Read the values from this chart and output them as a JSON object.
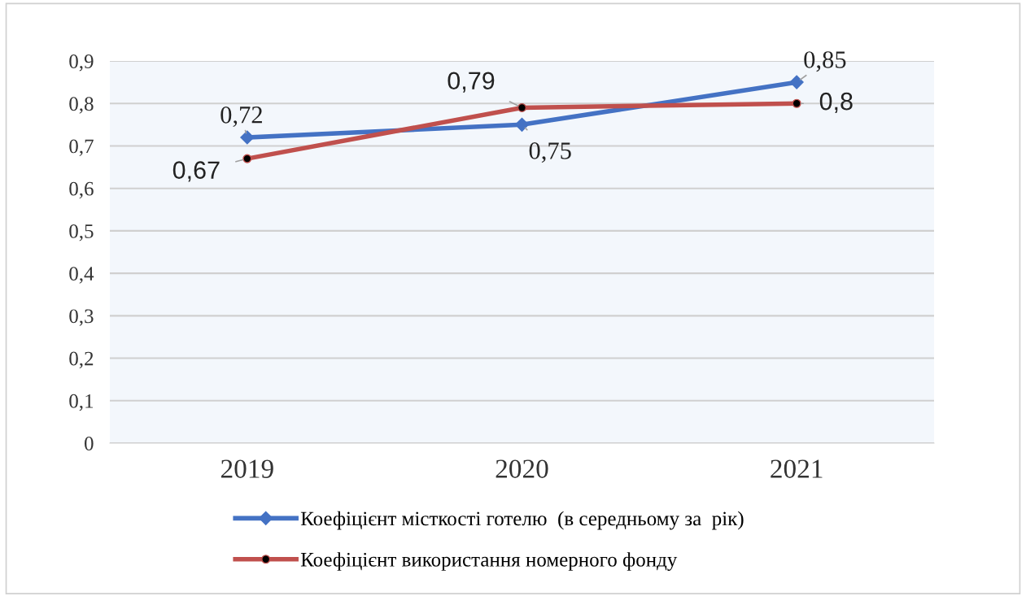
{
  "chart_data": {
    "type": "line",
    "categories": [
      "2019",
      "2020",
      "2021"
    ],
    "series": [
      {
        "name": "Коефіцієнт місткості готелю  (в середньому за  рік)",
        "color": "#4472c4",
        "marker": "diamond",
        "values": [
          0.72,
          0.75,
          0.85
        ],
        "value_labels": [
          "0,72",
          "0,75",
          "0,85"
        ]
      },
      {
        "name": "Коефіцієнт використання номерного фонду",
        "color": "#c0504d",
        "marker": "circle",
        "values": [
          0.67,
          0.79,
          0.8
        ],
        "value_labels": [
          "0,67",
          "0,79",
          "0,8"
        ]
      }
    ],
    "ylim": [
      0,
      0.9
    ],
    "yticks": [
      0,
      {
        "value": 0.1,
        "label": "0,1"
      },
      {
        "value": 0.2,
        "label": "0,2"
      },
      {
        "value": 0.3,
        "label": "0,3"
      },
      {
        "value": 0.4,
        "label": "0,4"
      },
      {
        "value": 0.5,
        "label": "0,5"
      },
      {
        "value": 0.6,
        "label": "0,6"
      },
      {
        "value": 0.7,
        "label": "0,7"
      },
      {
        "value": 0.8,
        "label": "0,8"
      },
      {
        "value": 0.9,
        "label": "0,9"
      }
    ],
    "grid": "y",
    "legend": "bottom",
    "line_style": "solid"
  }
}
